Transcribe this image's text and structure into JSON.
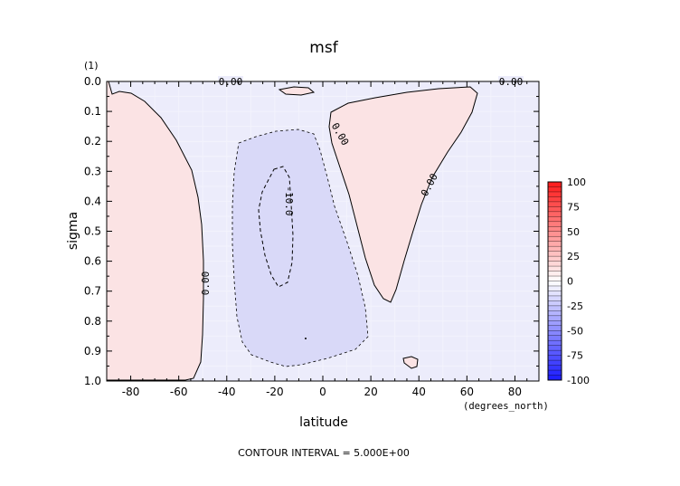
{
  "chart_data": {
    "type": "contour",
    "title": "msf",
    "panel_label": "(1)",
    "xlabel": "latitude",
    "x_units": "(degrees_north)",
    "ylabel": "sigma",
    "footer": "CONTOUR INTERVAL = 5.000E+00",
    "xlim": [
      -90,
      90
    ],
    "ylim": [
      1.0,
      0.0
    ],
    "x_ticks": [
      -80,
      -60,
      -40,
      -20,
      0,
      20,
      40,
      60,
      80
    ],
    "y_ticks": [
      "0.0",
      "0.1",
      "0.2",
      "0.3",
      "0.4",
      "0.5",
      "0.6",
      "0.7",
      "0.8",
      "0.9",
      "1.0"
    ],
    "contour_interval": 5.0,
    "colorbar": {
      "labels": [
        "100",
        "75",
        "50",
        "25",
        "0",
        "-25",
        "-50",
        "-75",
        "-100"
      ],
      "min": -100,
      "max": 100
    },
    "regions": [
      {
        "sign": "positive",
        "label": "0.00",
        "desc": "southern high-latitude cell",
        "lat_range": [
          -90,
          -50
        ],
        "sigma_range": [
          0.0,
          1.0
        ]
      },
      {
        "sign": "negative",
        "label": "-10.0",
        "desc": "tropical cell",
        "lat_range": [
          -30,
          15
        ],
        "sigma_range": [
          0.17,
          0.96
        ]
      },
      {
        "sign": "positive",
        "label": "0.00",
        "desc": "northern subtropical cell",
        "lat_range": [
          3,
          70
        ],
        "sigma_range": [
          0.05,
          0.74
        ]
      }
    ],
    "contour_labels": [
      "0.00",
      "0.00",
      "0.00",
      "0.00",
      "0.00",
      "-10.0"
    ]
  }
}
